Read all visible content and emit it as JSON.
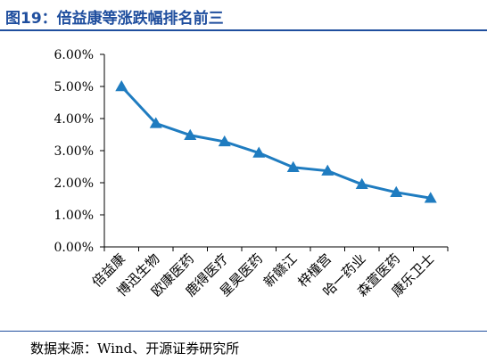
{
  "figure": {
    "title": "图19：倍益康等涨跌幅排名前三",
    "source": "数据来源：Wind、开源证券研究所"
  },
  "colors": {
    "title": "#1f4e9e",
    "series": "#1f7cc0",
    "axis": "#000000"
  },
  "chart_data": {
    "type": "line",
    "title": "",
    "xlabel": "",
    "ylabel": "",
    "categories": [
      "倍益康",
      "博迅生物",
      "欧康医药",
      "鹿得医疗",
      "星昊医药",
      "新赣江",
      "梓橦宫",
      "哈一药业",
      "森萱医药",
      "康乐卫士"
    ],
    "series": [
      {
        "values": [
          5.0,
          3.85,
          3.48,
          3.28,
          2.93,
          2.48,
          2.37,
          1.95,
          1.7,
          1.52
        ]
      }
    ],
    "ylim": [
      0,
      6
    ],
    "yticks": [
      "0.00%",
      "1.00%",
      "2.00%",
      "3.00%",
      "4.00%",
      "5.00%",
      "6.00%"
    ],
    "marker": "triangle",
    "grid": false,
    "legend": "none"
  }
}
